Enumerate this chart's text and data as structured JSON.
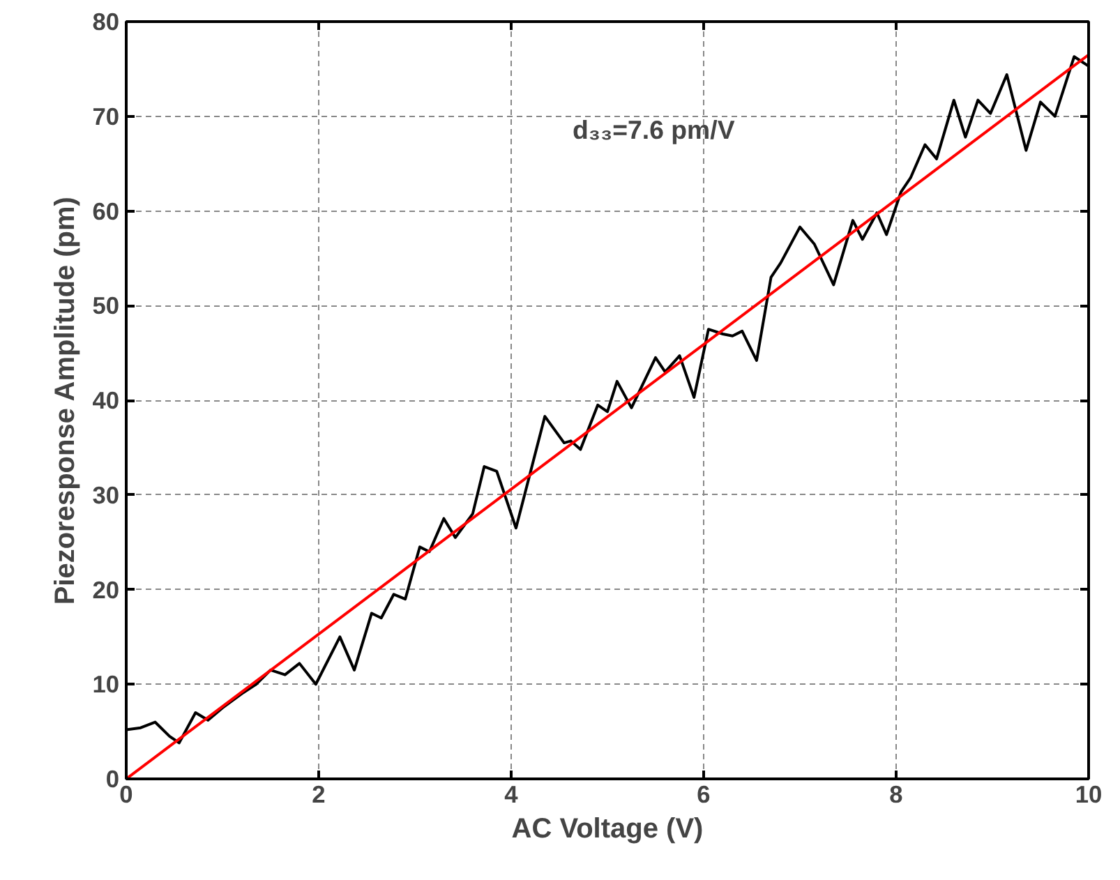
{
  "chart_data": {
    "type": "line",
    "xlabel": "AC Voltage (V)",
    "ylabel": "Piezoresponse Amplitude (pm)",
    "xlim": [
      0,
      10
    ],
    "ylim": [
      0,
      80
    ],
    "xticks": [
      0,
      2,
      4,
      6,
      8,
      10
    ],
    "yticks": [
      0,
      10,
      20,
      30,
      40,
      50,
      60,
      70,
      80
    ],
    "grid": true,
    "annotations": [
      "d₃₃=7.6 pm/V"
    ],
    "series": [
      {
        "color": "#000000",
        "x": [
          0,
          0.15,
          0.3,
          0.45,
          0.55,
          0.72,
          0.85,
          1.0,
          1.2,
          1.35,
          1.5,
          1.65,
          1.8,
          1.97,
          2.22,
          2.37,
          2.55,
          2.65,
          2.78,
          2.9,
          3.05,
          3.15,
          3.3,
          3.42,
          3.6,
          3.72,
          3.85,
          4.05,
          4.35,
          4.55,
          4.62,
          4.72,
          4.9,
          5.0,
          5.1,
          5.25,
          5.5,
          5.6,
          5.75,
          5.9,
          6.05,
          6.2,
          6.3,
          6.4,
          6.55,
          6.7,
          6.8,
          7.0,
          7.15,
          7.35,
          7.55,
          7.65,
          7.8,
          7.9,
          8.05,
          8.15,
          8.3,
          8.42,
          8.6,
          8.72,
          8.85,
          8.98,
          9.15,
          9.35,
          9.5,
          9.65,
          9.85,
          10.0
        ],
        "values": [
          5.2,
          5.4,
          6.0,
          4.5,
          3.8,
          7.0,
          6.2,
          7.5,
          9.0,
          10.0,
          11.5,
          11.0,
          12.2,
          10.0,
          15.0,
          11.5,
          17.5,
          17.0,
          19.5,
          19.0,
          24.5,
          24.0,
          27.5,
          25.5,
          28.0,
          33.0,
          32.5,
          26.5,
          38.3,
          35.5,
          35.7,
          34.8,
          39.5,
          38.8,
          42.0,
          39.2,
          44.5,
          43.0,
          44.7,
          40.3,
          47.5,
          47.0,
          46.8,
          47.3,
          44.2,
          53.0,
          54.5,
          58.3,
          56.5,
          52.2,
          59.0,
          57.0,
          59.8,
          57.5,
          62.0,
          63.5,
          67.0,
          65.5,
          71.7,
          67.8,
          71.7,
          70.3,
          74.4,
          66.4,
          71.5,
          70.0,
          76.3,
          75.3
        ]
      },
      {
        "color": "#ff0000",
        "x": [
          0,
          10
        ],
        "values": [
          0,
          76.5
        ]
      }
    ]
  }
}
